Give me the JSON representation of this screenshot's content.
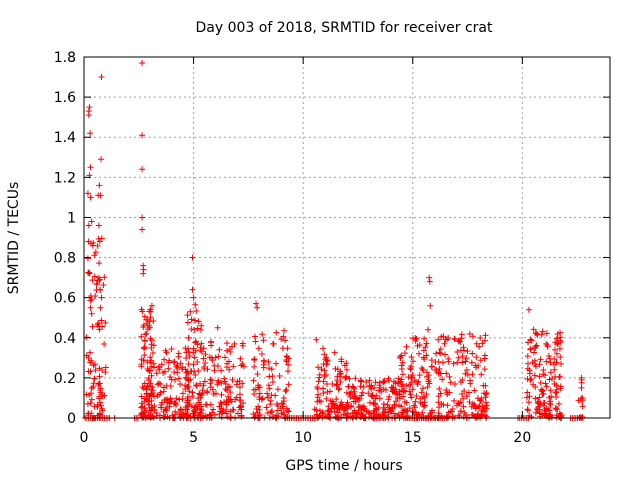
{
  "chart_data": {
    "type": "scatter",
    "title": "Day 003 of 2018, SRMTID for receiver crat",
    "xlabel": "GPS time / hours",
    "ylabel": "SRMTID / TECUs",
    "xlim": [
      0,
      24
    ],
    "ylim": [
      0,
      1.8
    ],
    "x_ticks": [
      0,
      5,
      10,
      15,
      20
    ],
    "y_ticks": [
      0,
      0.2,
      0.4,
      0.6,
      0.8,
      1,
      1.2,
      1.4,
      1.6,
      1.8
    ],
    "grid": true,
    "marker": "+",
    "color": "#ff0000",
    "series": [
      {
        "name": "SRMTID",
        "clusters": [
          {
            "x_range": [
              0.1,
              1.0
            ],
            "count": 90,
            "max": 0.9
          },
          {
            "x_range": [
              2.6,
              3.2
            ],
            "count": 110,
            "max": 0.55
          },
          {
            "x_range": [
              3.2,
              4.8
            ],
            "count": 120,
            "max": 0.35
          },
          {
            "x_range": [
              4.7,
              5.4
            ],
            "count": 90,
            "max": 0.6
          },
          {
            "x_range": [
              5.4,
              7.3
            ],
            "count": 130,
            "max": 0.4
          },
          {
            "x_range": [
              7.7,
              9.4
            ],
            "count": 110,
            "max": 0.45
          },
          {
            "x_range": [
              10.5,
              12.0
            ],
            "count": 120,
            "max": 0.35
          },
          {
            "x_range": [
              12.0,
              14.3
            ],
            "count": 170,
            "max": 0.2
          },
          {
            "x_range": [
              14.3,
              15.9
            ],
            "count": 130,
            "max": 0.4
          },
          {
            "x_range": [
              16.0,
              18.4
            ],
            "count": 170,
            "max": 0.42
          },
          {
            "x_range": [
              20.2,
              21.8
            ],
            "count": 150,
            "max": 0.45
          },
          {
            "x_range": [
              22.5,
              22.8
            ],
            "count": 10,
            "max": 0.2
          }
        ],
        "points": [
          {
            "x": 0.22,
            "y": 1.53
          },
          {
            "x": 0.25,
            "y": 1.55
          },
          {
            "x": 0.22,
            "y": 1.51
          },
          {
            "x": 0.28,
            "y": 1.42
          },
          {
            "x": 0.3,
            "y": 1.25
          },
          {
            "x": 0.25,
            "y": 1.21
          },
          {
            "x": 0.18,
            "y": 1.12
          },
          {
            "x": 0.3,
            "y": 1.1
          },
          {
            "x": 0.35,
            "y": 0.98
          },
          {
            "x": 0.22,
            "y": 0.96
          },
          {
            "x": 0.2,
            "y": 0.88
          },
          {
            "x": 0.32,
            "y": 0.87
          },
          {
            "x": 0.4,
            "y": 0.86
          },
          {
            "x": 0.8,
            "y": 1.7
          },
          {
            "x": 0.78,
            "y": 1.29
          },
          {
            "x": 0.7,
            "y": 1.16
          },
          {
            "x": 0.65,
            "y": 1.11
          },
          {
            "x": 0.75,
            "y": 1.11
          },
          {
            "x": 0.68,
            "y": 0.96
          },
          {
            "x": 0.72,
            "y": 0.88
          },
          {
            "x": 0.68,
            "y": 0.7
          },
          {
            "x": 0.72,
            "y": 0.69
          },
          {
            "x": 0.8,
            "y": 0.6
          },
          {
            "x": 0.75,
            "y": 0.55
          },
          {
            "x": 0.3,
            "y": 0.55
          },
          {
            "x": 0.35,
            "y": 0.52
          },
          {
            "x": 2.65,
            "y": 1.77
          },
          {
            "x": 2.65,
            "y": 1.41
          },
          {
            "x": 2.65,
            "y": 1.24
          },
          {
            "x": 2.65,
            "y": 1.0
          },
          {
            "x": 2.65,
            "y": 0.94
          },
          {
            "x": 2.7,
            "y": 0.76
          },
          {
            "x": 2.72,
            "y": 0.74
          },
          {
            "x": 2.7,
            "y": 0.72
          },
          {
            "x": 3.1,
            "y": 0.56
          },
          {
            "x": 3.05,
            "y": 0.53
          },
          {
            "x": 4.95,
            "y": 0.8
          },
          {
            "x": 4.95,
            "y": 0.64
          },
          {
            "x": 5.0,
            "y": 0.6
          },
          {
            "x": 4.85,
            "y": 0.53
          },
          {
            "x": 5.35,
            "y": 0.46
          },
          {
            "x": 6.1,
            "y": 0.45
          },
          {
            "x": 7.85,
            "y": 0.57
          },
          {
            "x": 7.9,
            "y": 0.55
          },
          {
            "x": 15.75,
            "y": 0.7
          },
          {
            "x": 15.78,
            "y": 0.68
          },
          {
            "x": 15.8,
            "y": 0.56
          },
          {
            "x": 15.7,
            "y": 0.44
          },
          {
            "x": 20.3,
            "y": 0.54
          },
          {
            "x": 10.6,
            "y": 0.39
          },
          {
            "x": 22.7,
            "y": 0.2
          },
          {
            "x": 22.7,
            "y": 0.15
          },
          {
            "x": 22.75,
            "y": 0.1
          }
        ],
        "zero_runs": [
          [
            0.05,
            1.2
          ],
          [
            1.4,
            1.45
          ],
          [
            2.3,
            2.5
          ],
          [
            9.3,
            10.6
          ],
          [
            14.6,
            16.6
          ],
          [
            19.8,
            20.3
          ],
          [
            22.2,
            22.8
          ]
        ]
      }
    ]
  }
}
